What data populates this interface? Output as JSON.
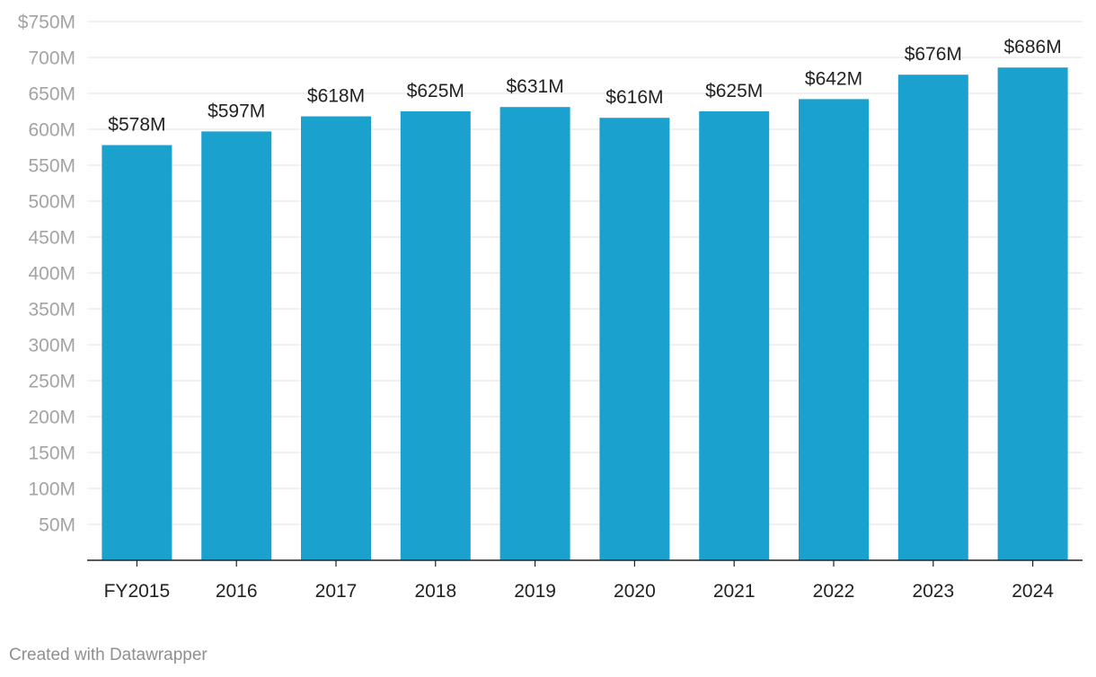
{
  "chart_data": {
    "type": "bar",
    "categories": [
      "FY2015",
      "2016",
      "2017",
      "2018",
      "2019",
      "2020",
      "2021",
      "2022",
      "2023",
      "2024"
    ],
    "values": [
      578,
      597,
      618,
      625,
      631,
      616,
      625,
      642,
      676,
      686
    ],
    "value_labels": [
      "$578M",
      "$597M",
      "$618M",
      "$625M",
      "$631M",
      "$616M",
      "$625M",
      "$642M",
      "$676M",
      "$686M"
    ],
    "y_ticks": [
      50,
      100,
      150,
      200,
      250,
      300,
      350,
      400,
      450,
      500,
      550,
      600,
      650,
      700,
      750
    ],
    "y_tick_labels": [
      "50M",
      "100M",
      "150M",
      "200M",
      "250M",
      "300M",
      "350M",
      "400M",
      "450M",
      "500M",
      "550M",
      "600M",
      "650M",
      "700M",
      "$750M"
    ],
    "ylim": [
      0,
      750
    ],
    "unit": "$M",
    "grid": true,
    "bar_color": "#1aa1ce"
  },
  "footer": {
    "credit": "Created with Datawrapper"
  }
}
